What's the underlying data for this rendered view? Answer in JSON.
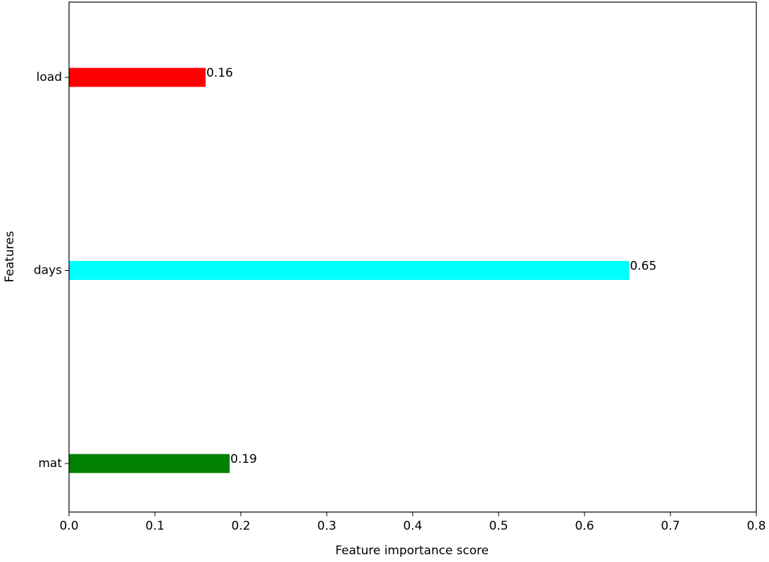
{
  "chart_data": {
    "type": "barh",
    "xlabel": "Feature importance score",
    "ylabel": "Features",
    "categories": [
      "mat",
      "days",
      "load"
    ],
    "values": [
      0.187,
      0.652,
      0.159
    ],
    "value_labels": [
      "0.19",
      "0.65",
      "0.16"
    ],
    "colors": [
      "#008000",
      "#00ffff",
      "#ff0000"
    ],
    "xlim": [
      0,
      0.8
    ],
    "xticks": [
      {
        "value": 0,
        "label": "0.0"
      },
      0.1,
      0.2,
      0.3,
      0.4,
      0.5,
      0.6,
      0.7,
      0.8
    ],
    "grid": false
  }
}
